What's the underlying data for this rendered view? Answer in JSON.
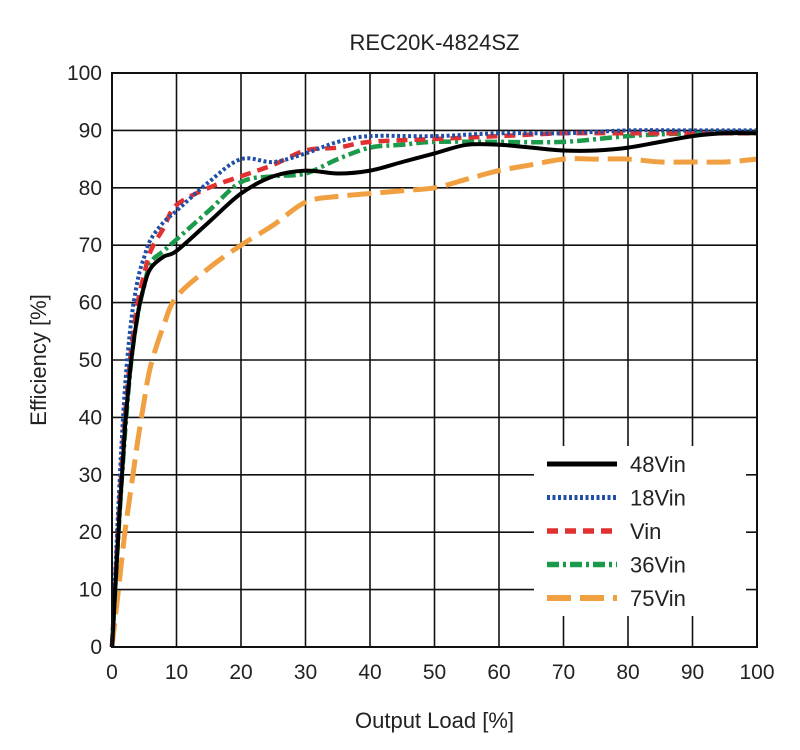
{
  "chart_data": {
    "type": "line",
    "title": "REC20K-4824SZ",
    "xlabel": "Output Load [%]",
    "ylabel": "Efficiency [%]",
    "xlim": [
      0,
      100
    ],
    "ylim": [
      0,
      100
    ],
    "x_ticks": [
      0,
      10,
      20,
      30,
      40,
      50,
      60,
      70,
      80,
      90,
      100
    ],
    "y_ticks": [
      0,
      10,
      20,
      30,
      40,
      50,
      60,
      70,
      80,
      90,
      100
    ],
    "grid": true,
    "legend_position": "bottom-right",
    "series": [
      {
        "name": "48Vin",
        "color": "#000000",
        "style": "solid",
        "points": [
          [
            0,
            0
          ],
          [
            1,
            20
          ],
          [
            2,
            38
          ],
          [
            3,
            50
          ],
          [
            4,
            58
          ],
          [
            5,
            63
          ],
          [
            6,
            66
          ],
          [
            8,
            68
          ],
          [
            10,
            69
          ],
          [
            15,
            74
          ],
          [
            20,
            79
          ],
          [
            25,
            82
          ],
          [
            30,
            83
          ],
          [
            35,
            82.5
          ],
          [
            40,
            83
          ],
          [
            45,
            84.5
          ],
          [
            50,
            86
          ],
          [
            55,
            87.5
          ],
          [
            60,
            87.5
          ],
          [
            65,
            87
          ],
          [
            70,
            86.5
          ],
          [
            75,
            86.5
          ],
          [
            80,
            87
          ],
          [
            85,
            88
          ],
          [
            90,
            89
          ],
          [
            95,
            89.5
          ],
          [
            100,
            89.5
          ]
        ]
      },
      {
        "name": "18Vin",
        "color": "#1f4fa8",
        "style": "dotted",
        "points": [
          [
            0,
            0
          ],
          [
            1,
            25
          ],
          [
            2,
            45
          ],
          [
            3,
            57
          ],
          [
            4,
            64
          ],
          [
            5,
            68
          ],
          [
            6,
            71
          ],
          [
            8,
            74
          ],
          [
            10,
            76
          ],
          [
            15,
            81
          ],
          [
            20,
            85
          ],
          [
            25,
            84.5
          ],
          [
            30,
            86
          ],
          [
            35,
            88
          ],
          [
            40,
            89
          ],
          [
            50,
            89
          ],
          [
            60,
            89.5
          ],
          [
            70,
            89.5
          ],
          [
            80,
            90
          ],
          [
            90,
            90
          ],
          [
            100,
            90
          ]
        ]
      },
      {
        "name": "Vin",
        "color": "#e03030",
        "style": "dashed",
        "points": [
          [
            0,
            0
          ],
          [
            1,
            22
          ],
          [
            2,
            40
          ],
          [
            3,
            52
          ],
          [
            4,
            60
          ],
          [
            5,
            65
          ],
          [
            6,
            69
          ],
          [
            8,
            73
          ],
          [
            10,
            77
          ],
          [
            15,
            80
          ],
          [
            20,
            82
          ],
          [
            25,
            84
          ],
          [
            30,
            86.5
          ],
          [
            35,
            87
          ],
          [
            40,
            88
          ],
          [
            50,
            88.5
          ],
          [
            60,
            89
          ],
          [
            70,
            89.5
          ],
          [
            80,
            89.5
          ],
          [
            90,
            89.5
          ],
          [
            100,
            89.5
          ]
        ]
      },
      {
        "name": "36Vin",
        "color": "#1a9a4a",
        "style": "dashdot",
        "points": [
          [
            0,
            0
          ],
          [
            1,
            20
          ],
          [
            2,
            37
          ],
          [
            3,
            50
          ],
          [
            4,
            58
          ],
          [
            5,
            63
          ],
          [
            6,
            67
          ],
          [
            8,
            69
          ],
          [
            10,
            71
          ],
          [
            15,
            76
          ],
          [
            20,
            81
          ],
          [
            25,
            82
          ],
          [
            30,
            82.5
          ],
          [
            35,
            85
          ],
          [
            40,
            87
          ],
          [
            45,
            87.5
          ],
          [
            50,
            88
          ],
          [
            60,
            88
          ],
          [
            70,
            88
          ],
          [
            80,
            89
          ],
          [
            90,
            89.5
          ],
          [
            100,
            89.5
          ]
        ]
      },
      {
        "name": "75Vin",
        "color": "#f0a040",
        "style": "longdash",
        "points": [
          [
            0,
            0
          ],
          [
            1,
            10
          ],
          [
            2,
            20
          ],
          [
            3,
            28
          ],
          [
            4,
            36
          ],
          [
            5,
            43
          ],
          [
            6,
            49
          ],
          [
            8,
            56
          ],
          [
            10,
            61
          ],
          [
            15,
            66
          ],
          [
            20,
            70
          ],
          [
            25,
            73.5
          ],
          [
            30,
            77.5
          ],
          [
            35,
            78.5
          ],
          [
            40,
            79
          ],
          [
            45,
            79.5
          ],
          [
            50,
            80
          ],
          [
            55,
            81.5
          ],
          [
            60,
            83
          ],
          [
            65,
            84
          ],
          [
            70,
            85
          ],
          [
            75,
            85
          ],
          [
            80,
            85
          ],
          [
            85,
            84.5
          ],
          [
            90,
            84.5
          ],
          [
            95,
            84.5
          ],
          [
            100,
            85
          ]
        ]
      }
    ]
  }
}
